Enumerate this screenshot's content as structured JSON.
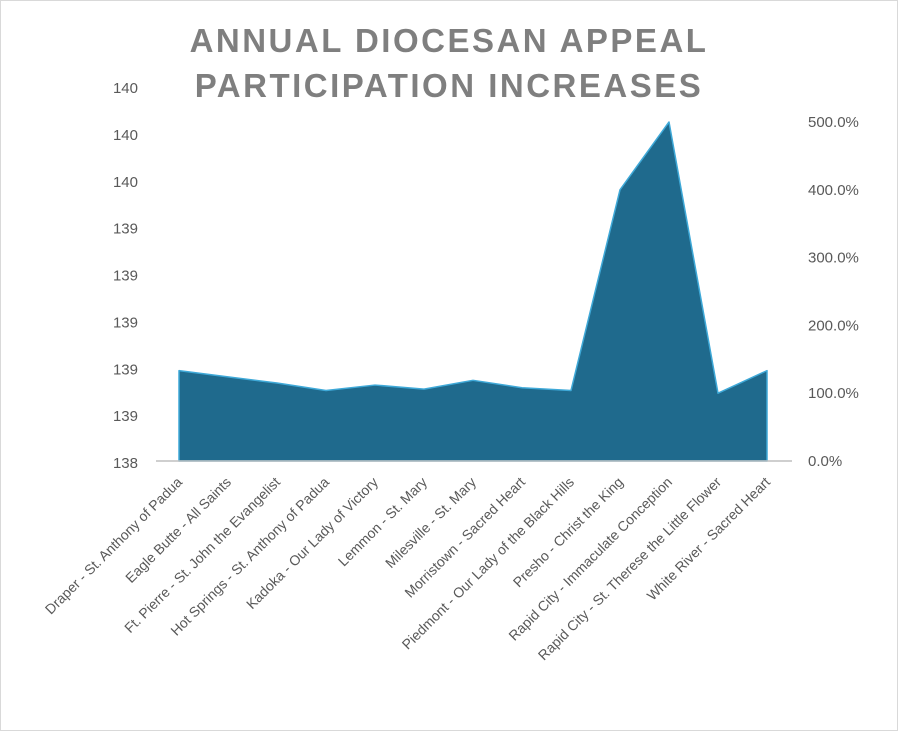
{
  "chart_data": {
    "type": "area",
    "title_lines": [
      "ANNUAL DIOCESAN APPEAL",
      "PARTICIPATION INCREASES"
    ],
    "categories": [
      "Draper - St. Anthony of Padua",
      "Eagle Butte - All Saints",
      "Ft. Pierre - St. John the Evangelist",
      "Hot Springs - St. Anthony of Padua",
      "Kadoka - Our Lady of Victory",
      "Lemmon - St. Mary",
      "Milesville - St. Mary",
      "Morristown - Sacred Heart",
      "Piedmont - Our Lady of the Black Hills",
      "Presho - Christ the King",
      "Rapid City - Immaculate Conception",
      "Rapid City - St. Therese the Little Flower",
      "White River - Sacred Heart"
    ],
    "series": [
      {
        "values": [
          133.3,
          124.0,
          115.0,
          104.0,
          112.0,
          106.0,
          119.0,
          108.0,
          104.0,
          400.0,
          500.0,
          100.0,
          133.3
        ],
        "axis": "secondary",
        "unit": "%"
      }
    ],
    "y_secondary": {
      "range": [
        0,
        550
      ],
      "ticks": [
        0,
        100,
        200,
        300,
        400,
        500
      ],
      "tick_labels": [
        "0.0%",
        "100.0%",
        "200.0%",
        "300.0%",
        "400.0%",
        "500.0%"
      ]
    },
    "y_primary": {
      "tick_labels": [
        "138",
        "139",
        "139",
        "139",
        "139",
        "139",
        "140",
        "140",
        "140"
      ]
    },
    "xlabel": "",
    "ylabel": "",
    "grid": false,
    "legend": "none",
    "colors": {
      "fill": "#1f6a8d",
      "outline": "#3fa9d8",
      "axis": "#bfbfbf",
      "title": "#7f7f7f",
      "text": "#595959"
    }
  }
}
